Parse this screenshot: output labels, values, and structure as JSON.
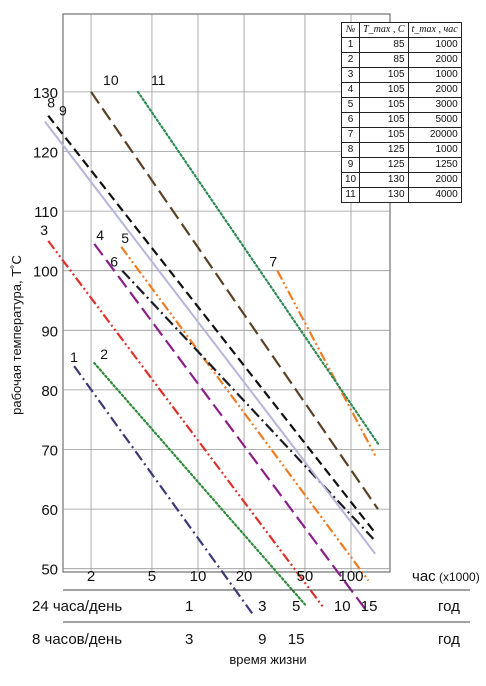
{
  "chart_data": {
    "type": "line",
    "ylabel": "рабочая температура, Т˚С",
    "xlabel": "время жизни",
    "x_unit": "час",
    "x_multiplier": "(x1000)",
    "x_scale": "log",
    "xlim": [
      1,
      150
    ],
    "ylim": [
      43,
      132
    ],
    "yticks": [
      50,
      60,
      70,
      80,
      90,
      100,
      110,
      120,
      130
    ],
    "xticks": [
      2,
      5,
      10,
      20,
      50,
      100
    ],
    "grid": true,
    "secondary_axes": [
      {
        "label": "24 часа/день",
        "unit": "год",
        "ticks": [
          {
            "x": 8.76,
            "label": "1"
          },
          {
            "x": 26.3,
            "label": "3"
          },
          {
            "x": 43.8,
            "label": "5"
          },
          {
            "x": 87.6,
            "label": "10"
          },
          {
            "x": 131.4,
            "label": "15"
          }
        ]
      },
      {
        "label": "8 часов/день",
        "unit": "год",
        "ticks": [
          {
            "x": 8.76,
            "label": "3"
          },
          {
            "x": 26.3,
            "label": "9"
          },
          {
            "x": 43.8,
            "label": "15"
          }
        ]
      }
    ],
    "series": [
      {
        "name": "1",
        "color": "#3b3a78",
        "dash": "dash-dot",
        "points": [
          [
            1.55,
            84
          ],
          [
            22.6,
            42.5
          ]
        ]
      },
      {
        "name": "2",
        "color": "#2e8b3a",
        "dash": "dot",
        "points": [
          [
            2.1,
            84.5
          ],
          [
            50,
            44
          ]
        ]
      },
      {
        "name": "3",
        "color": "#e0302a",
        "dash": "dash-dot-dot",
        "points": [
          [
            1.05,
            105
          ],
          [
            66,
            43.5
          ]
        ]
      },
      {
        "name": "4",
        "color": "#8a1f8a",
        "dash": "long-dash",
        "points": [
          [
            2.1,
            104.5
          ],
          [
            130,
            42.5
          ]
        ]
      },
      {
        "name": "5",
        "color": "#f07c22",
        "dash": "dash-dot-dot",
        "points": [
          [
            3.15,
            104
          ],
          [
            130,
            48
          ]
        ]
      },
      {
        "name": "6",
        "color": "#1a1a24",
        "dash": "dash-dot",
        "points": [
          [
            3.2,
            100
          ],
          [
            140,
            55
          ]
        ]
      },
      {
        "name": "7",
        "color": "#f07c22",
        "dash": "dash-dot-dot",
        "points": [
          [
            33,
            100
          ],
          [
            144,
            69
          ]
        ]
      },
      {
        "name": "8",
        "color": "#111111",
        "dash": "dash",
        "points": [
          [
            1.05,
            126
          ],
          [
            144,
            56
          ]
        ]
      },
      {
        "name": "9",
        "color": "#b6b6dc",
        "dash": "solid",
        "points": [
          [
            1.0,
            125
          ],
          [
            144,
            52.5
          ]
        ]
      },
      {
        "name": "10",
        "color": "#5b4226",
        "dash": "long-dash",
        "points": [
          [
            2.0,
            130
          ],
          [
            150,
            60
          ]
        ]
      },
      {
        "name": "11",
        "color": "#2e8b55",
        "dash": "dot",
        "points": [
          [
            4.05,
            130
          ],
          [
            150,
            71
          ]
        ]
      }
    ],
    "table": {
      "headers": [
        "№",
        "T_max , C",
        "t_max , час"
      ],
      "rows": [
        [
          "1",
          "85",
          "1000"
        ],
        [
          "2",
          "85",
          "2000"
        ],
        [
          "3",
          "105",
          "1000"
        ],
        [
          "4",
          "105",
          "2000"
        ],
        [
          "5",
          "105",
          "3000"
        ],
        [
          "6",
          "105",
          "5000"
        ],
        [
          "7",
          "105",
          "20000"
        ],
        [
          "8",
          "125",
          "1000"
        ],
        [
          "9",
          "125",
          "1250"
        ],
        [
          "10",
          "130",
          "2000"
        ],
        [
          "11",
          "130",
          "4000"
        ]
      ]
    }
  }
}
